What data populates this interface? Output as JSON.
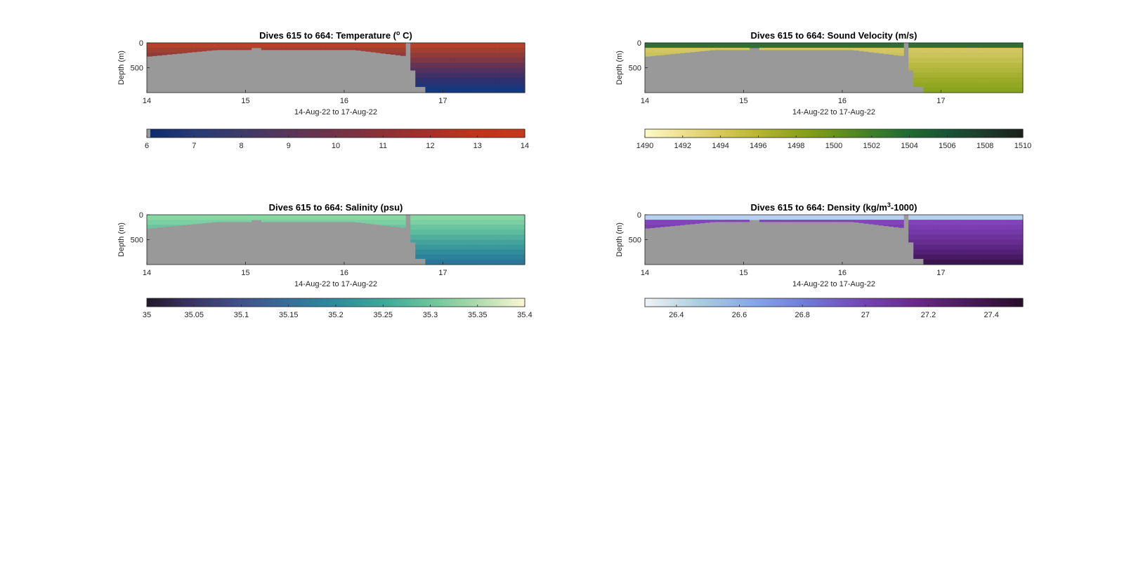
{
  "figure": {
    "background": "#ffffff",
    "seafloor_color": "#999999"
  },
  "chart_data": [
    {
      "type": "heatmap",
      "title": "Dives 615 to 664: Temperature (",
      "title_sup": "o",
      "title_after": " C)",
      "ylabel": "Depth (m)",
      "y_ticks": [
        "0",
        "500"
      ],
      "x_ticks": [
        "14",
        "15",
        "16",
        "17"
      ],
      "x_tick_values": [
        14,
        15,
        16,
        17
      ],
      "xlim": [
        14,
        17.83
      ],
      "ylim": [
        0,
        1000
      ],
      "y_reversed": true,
      "xlabel": "14-Aug-22 to 17-Aug-22",
      "colorbar": {
        "ticks": [
          "6",
          "7",
          "8",
          "9",
          "10",
          "11",
          "12",
          "13",
          "14"
        ],
        "tick_values": [
          6,
          7,
          8,
          9,
          10,
          11,
          12,
          13,
          14
        ],
        "range": [
          6,
          14
        ],
        "colors": [
          "#0d2b6e",
          "#283a75",
          "#3d3a6a",
          "#583658",
          "#733248",
          "#8c3138",
          "#a6302a",
          "#c1341b",
          "#c7371a"
        ]
      },
      "surface_color": "#b4432a",
      "water_colors": [
        "#b4432a",
        "#8a3a3c",
        "#5c3258",
        "#322f6b",
        "#133a80"
      ]
    },
    {
      "type": "heatmap",
      "title": "Dives 615 to 664: Sound Velocity (m/s)",
      "title_sup": "",
      "title_after": "",
      "ylabel": "Depth (m)",
      "y_ticks": [
        "0",
        "500"
      ],
      "x_ticks": [
        "14",
        "15",
        "16",
        "17"
      ],
      "x_tick_values": [
        14,
        15,
        16,
        17
      ],
      "xlim": [
        14,
        17.83
      ],
      "ylim": [
        0,
        1000
      ],
      "y_reversed": true,
      "xlabel": "14-Aug-22 to 17-Aug-22",
      "colorbar": {
        "ticks": [
          "1490",
          "1492",
          "1494",
          "1496",
          "1498",
          "1500",
          "1502",
          "1504",
          "1506",
          "1508",
          "1510"
        ],
        "tick_values": [
          1490,
          1492,
          1494,
          1496,
          1498,
          1500,
          1502,
          1504,
          1506,
          1508,
          1510
        ],
        "range": [
          1490,
          1510
        ],
        "colors": [
          "#fdf8c6",
          "#ecdf8d",
          "#d6c85a",
          "#b6b52f",
          "#8fa31b",
          "#6b921c",
          "#3f7f28",
          "#1f6a32",
          "#195434",
          "#1e3b2c",
          "#1a221c"
        ]
      },
      "surface_color": "#2f6f36",
      "water_colors": [
        "#d8c96a",
        "#c8c257",
        "#b4b83c",
        "#9cac28",
        "#8aa31d"
      ]
    },
    {
      "type": "heatmap",
      "title": "Dives 615 to 664: Salinity (psu)",
      "title_sup": "",
      "title_after": "",
      "ylabel": "Depth (m)",
      "y_ticks": [
        "0",
        "500"
      ],
      "x_ticks": [
        "14",
        "15",
        "16",
        "17"
      ],
      "x_tick_values": [
        14,
        15,
        16,
        17
      ],
      "xlim": [
        14,
        17.83
      ],
      "ylim": [
        0,
        1000
      ],
      "y_reversed": true,
      "xlabel": "14-Aug-22 to 17-Aug-22",
      "colorbar": {
        "ticks": [
          "35",
          "35.05",
          "35.1",
          "35.15",
          "35.2",
          "35.25",
          "35.3",
          "35.35",
          "35.4"
        ],
        "tick_values": [
          35,
          35.05,
          35.1,
          35.15,
          35.2,
          35.25,
          35.3,
          35.35,
          35.4
        ],
        "range": [
          35,
          35.4
        ],
        "colors": [
          "#231a2e",
          "#3b3668",
          "#40528e",
          "#376f99",
          "#2f8b9c",
          "#3ea79a",
          "#6cc39a",
          "#aadbab",
          "#f8f6d0"
        ]
      },
      "surface_color": "#86d7a3",
      "water_colors": [
        "#8cd9a6",
        "#66c29e",
        "#48a99b",
        "#318f9b",
        "#2a7699"
      ]
    },
    {
      "type": "heatmap",
      "title": "Dives 615 to 664: Density (kg/m",
      "title_sup": "3",
      "title_after": "-1000)",
      "ylabel": "Depth (m)",
      "y_ticks": [
        "0",
        "500"
      ],
      "x_ticks": [
        "14",
        "15",
        "16",
        "17"
      ],
      "x_tick_values": [
        14,
        15,
        16,
        17
      ],
      "xlim": [
        14,
        17.83
      ],
      "ylim": [
        0,
        1000
      ],
      "y_reversed": true,
      "xlabel": "14-Aug-22 to 17-Aug-22",
      "colorbar": {
        "ticks": [
          "26.4",
          "26.6",
          "26.8",
          "27",
          "27.2",
          "27.4"
        ],
        "tick_values": [
          26.4,
          26.6,
          26.8,
          27,
          27.2,
          27.4
        ],
        "range": [
          26.3,
          27.5
        ],
        "colors": [
          "#eef2f4",
          "#a9cde0",
          "#86a7e8",
          "#6f7ad6",
          "#7447b4",
          "#6a2a8a",
          "#4a1a5b",
          "#2a0e2e"
        ]
      },
      "surface_color": "#b8d0ef",
      "water_colors": [
        "#8a48c4",
        "#7a3cae",
        "#6b2f98",
        "#55217a",
        "#3b1451"
      ]
    }
  ]
}
